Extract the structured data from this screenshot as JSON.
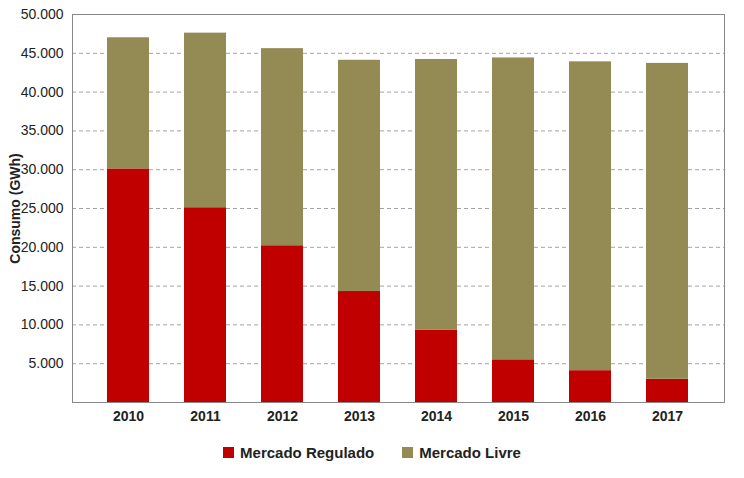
{
  "chart_data": {
    "type": "bar",
    "stacked": true,
    "y_label": "Consumo (GWh)",
    "categories": [
      "2010",
      "2011",
      "2012",
      "2013",
      "2014",
      "2015",
      "2016",
      "2017"
    ],
    "series": [
      {
        "name": "Mercado Regulado",
        "color": "#C00000",
        "values": [
          30100,
          25100,
          20200,
          14300,
          9300,
          5500,
          4100,
          3000
        ]
      },
      {
        "name": "Mercado Livre",
        "color": "#948A54",
        "values": [
          16900,
          22500,
          25400,
          29800,
          34900,
          38900,
          39800,
          40700
        ]
      }
    ],
    "ylim": [
      0,
      50000
    ],
    "yticks": [
      {
        "value": 5000,
        "label": "5.000"
      },
      {
        "value": 10000,
        "label": "10.000"
      },
      {
        "value": 15000,
        "label": "15.000"
      },
      {
        "value": 20000,
        "label": "20.000"
      },
      {
        "value": 25000,
        "label": "25.000"
      },
      {
        "value": 30000,
        "label": "30.000"
      },
      {
        "value": 35000,
        "label": "35.000"
      },
      {
        "value": 40000,
        "label": "40.000"
      },
      {
        "value": 45000,
        "label": "45.000"
      },
      {
        "value": 50000,
        "label": "50.000"
      }
    ],
    "grid": true,
    "legend": "bottom"
  }
}
